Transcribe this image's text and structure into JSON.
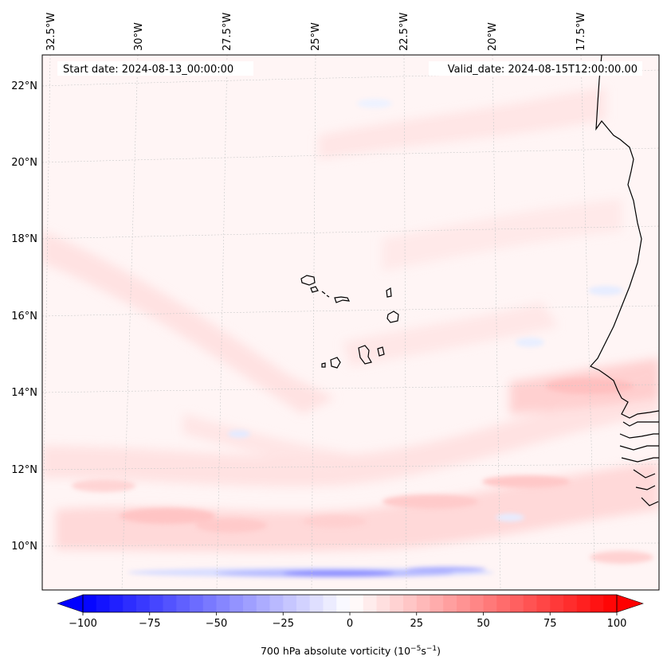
{
  "map": {
    "start_date_text": "Start date: 2024-08-13_00:00:00",
    "valid_date_text": "Valid_date: 2024-08-15T12:00:00.00",
    "lon_labels": [
      "32.5°W",
      "30°W",
      "27.5°W",
      "25°W",
      "22.5°W",
      "20°W",
      "17.5°W"
    ],
    "lat_labels": [
      "22°N",
      "20°N",
      "18°N",
      "16°N",
      "14°N",
      "12°N",
      "10°N"
    ],
    "extent_deg": {
      "lon_west": -33.0,
      "lon_east": -15.0,
      "lat_south": 8.9,
      "lat_north": 22.7
    },
    "gridlines": true,
    "field_colors": {
      "land_outline": "#000000",
      "pos_light": "#ffe3e3",
      "pos_mid": "#ffbcbc",
      "neg_mid": "#8f8fff"
    }
  },
  "colorbar": {
    "label_main": "700 hPa absolute vorticity (10",
    "label_exp1": "−5",
    "label_mid": "s",
    "label_exp2": "−1",
    "label_end": ")",
    "ticks": [
      "−100",
      "−75",
      "−50",
      "−25",
      "0",
      "25",
      "50",
      "75",
      "100"
    ],
    "min": -100,
    "max": 100,
    "step": 5,
    "colormap": "bwr",
    "extend": "both"
  }
}
